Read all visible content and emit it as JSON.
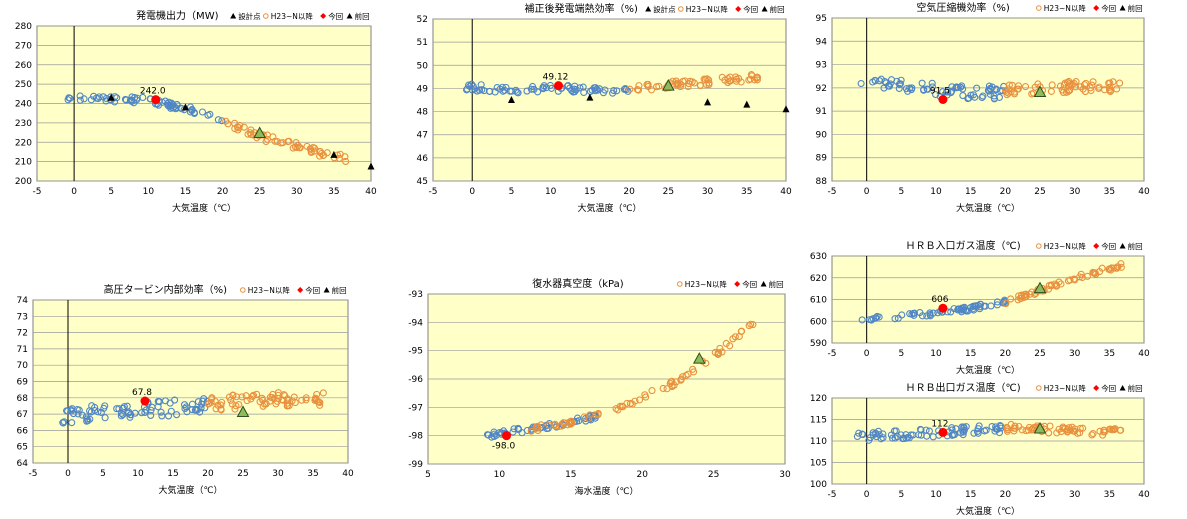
{
  "legend_labels": {
    "design": "設計点",
    "h23": "H23~N以降",
    "current": "今回",
    "previous": "前回"
  },
  "colors": {
    "plot_bg": "#ffffc8",
    "grid": "#9a9a9a",
    "blue": "#4f86c6",
    "orange": "#e8913e",
    "current": "#ff0000",
    "previous_fill": "#8fbc5a",
    "design": "#000000"
  },
  "chart_data": [
    {
      "id": "c1",
      "type": "scatter",
      "title": "発電機出力（MW)",
      "legend": [
        "design",
        "h23",
        "current",
        "previous"
      ],
      "xlabel": "大気温度（℃）",
      "ylabel": "",
      "xlim": [
        -5,
        40
      ],
      "ylim": [
        200,
        280
      ],
      "xticks": [
        -5,
        0,
        5,
        10,
        15,
        20,
        25,
        30,
        35,
        40
      ],
      "yticks": [
        200,
        210,
        220,
        230,
        240,
        250,
        260,
        270,
        280
      ],
      "vline_x": 0,
      "series": [
        {
          "color": "blue",
          "xrange": [
            -1,
            20
          ],
          "curve": [
            [
              -1,
              242.5
            ],
            [
              5,
              242.5
            ],
            [
              10,
              241.5
            ],
            [
              15,
              237.5
            ],
            [
              20,
              231
            ]
          ],
          "spread": 1.6,
          "n": 70
        },
        {
          "color": "orange",
          "xrange": [
            20,
            37
          ],
          "curve": [
            [
              20,
              231
            ],
            [
              25,
              223
            ],
            [
              30,
              218
            ],
            [
              34,
              213.5
            ],
            [
              37,
              211.5
            ]
          ],
          "spread": 1.8,
          "n": 60
        }
      ],
      "design_points": [
        [
          5,
          243
        ],
        [
          15,
          238
        ],
        [
          35,
          213.5
        ],
        [
          40,
          207.5
        ]
      ],
      "current": {
        "x": 11,
        "y": 242.0,
        "label": "242.0"
      },
      "previous": {
        "x": 25,
        "y": 224.5
      }
    },
    {
      "id": "c2",
      "type": "scatter",
      "title": "補正後発電端熱効率（%)",
      "legend": [
        "design",
        "h23",
        "current",
        "previous"
      ],
      "xlabel": "大気温度（℃）",
      "ylabel": "",
      "xlim": [
        -5,
        40
      ],
      "ylim": [
        45,
        52
      ],
      "xticks": [
        -5,
        0,
        5,
        10,
        15,
        20,
        25,
        30,
        35,
        40
      ],
      "yticks": [
        45,
        46,
        47,
        48,
        49,
        50,
        51,
        52
      ],
      "vline_x": 0,
      "series": [
        {
          "color": "blue",
          "xrange": [
            -1,
            20
          ],
          "curve": [
            [
              -1,
              49.05
            ],
            [
              5,
              48.95
            ],
            [
              10,
              49.0
            ],
            [
              15,
              48.95
            ],
            [
              20,
              48.9
            ]
          ],
          "spread": 0.15,
          "n": 70
        },
        {
          "color": "orange",
          "xrange": [
            20,
            37
          ],
          "curve": [
            [
              20,
              49.0
            ],
            [
              25,
              49.15
            ],
            [
              30,
              49.3
            ],
            [
              37,
              49.5
            ]
          ],
          "spread": 0.15,
          "n": 60
        }
      ],
      "design_points": [
        [
          5,
          48.5
        ],
        [
          15,
          48.6
        ],
        [
          30,
          48.4
        ],
        [
          35,
          48.3
        ],
        [
          40,
          48.1
        ]
      ],
      "current": {
        "x": 11,
        "y": 49.12,
        "label": "49.12"
      },
      "previous": {
        "x": 25,
        "y": 49.1
      }
    },
    {
      "id": "c3",
      "type": "scatter",
      "title": "空気圧縮機効率（%)",
      "legend": [
        "h23",
        "current",
        "previous"
      ],
      "xlabel": "大気温度（℃）",
      "ylabel": "",
      "xlim": [
        -5,
        40
      ],
      "ylim": [
        88,
        95
      ],
      "xticks": [
        -5,
        0,
        5,
        10,
        15,
        20,
        25,
        30,
        35,
        40
      ],
      "yticks": [
        88,
        89,
        90,
        91,
        92,
        93,
        94,
        95
      ],
      "vline_x": 0,
      "series": [
        {
          "color": "blue",
          "xrange": [
            -1,
            20
          ],
          "curve": [
            [
              -1,
              92.3
            ],
            [
              5,
              92.1
            ],
            [
              10,
              91.9
            ],
            [
              15,
              91.8
            ],
            [
              20,
              91.8
            ]
          ],
          "spread": 0.28,
          "n": 70
        },
        {
          "color": "orange",
          "xrange": [
            20,
            37
          ],
          "curve": [
            [
              20,
              91.9
            ],
            [
              25,
              92.0
            ],
            [
              30,
              92.05
            ],
            [
              37,
              92.1
            ]
          ],
          "spread": 0.25,
          "n": 60
        }
      ],
      "design_points": [],
      "current": {
        "x": 11,
        "y": 91.5,
        "label": "91.5"
      },
      "previous": {
        "x": 25,
        "y": 91.8
      }
    },
    {
      "id": "c4",
      "type": "scatter",
      "title": "高圧タービン内部効率（%)",
      "legend": [
        "h23",
        "current",
        "previous"
      ],
      "xlabel": "大気温度（℃）",
      "ylabel": "",
      "xlim": [
        -5,
        40
      ],
      "ylim": [
        64,
        74
      ],
      "xticks": [
        -5,
        0,
        5,
        10,
        15,
        20,
        25,
        30,
        35,
        40
      ],
      "yticks": [
        64,
        65,
        66,
        67,
        68,
        69,
        70,
        71,
        72,
        73,
        74
      ],
      "vline_x": 0,
      "series": [
        {
          "color": "blue",
          "xrange": [
            -1,
            20
          ],
          "curve": [
            [
              -1,
              66.9
            ],
            [
              5,
              67.1
            ],
            [
              10,
              67.3
            ],
            [
              15,
              67.4
            ],
            [
              20,
              67.5
            ]
          ],
          "spread": 0.5,
          "n": 80
        },
        {
          "color": "orange",
          "xrange": [
            20,
            37
          ],
          "curve": [
            [
              20,
              67.6
            ],
            [
              25,
              67.8
            ],
            [
              30,
              67.9
            ],
            [
              37,
              67.9
            ]
          ],
          "spread": 0.45,
          "n": 70
        }
      ],
      "design_points": [],
      "current": {
        "x": 11,
        "y": 67.8,
        "label": "67.8"
      },
      "previous": {
        "x": 25,
        "y": 67.1
      }
    },
    {
      "id": "c5",
      "type": "scatter",
      "title": "復水器真空度（kPa)",
      "legend": [
        "h23",
        "current",
        "previous"
      ],
      "xlabel": "海水温度（℃）",
      "ylabel": "",
      "xlim": [
        5,
        30
      ],
      "ylim": [
        -99,
        -93
      ],
      "xticks": [
        5,
        10,
        15,
        20,
        25,
        30
      ],
      "yticks": [
        -99,
        -98,
        -97,
        -96,
        -95,
        -94,
        -93
      ],
      "vline_x": null,
      "series": [
        {
          "color": "blue",
          "xrange": [
            9,
            17
          ],
          "curve": [
            [
              9,
              -98.0
            ],
            [
              13,
              -97.7
            ],
            [
              17,
              -97.3
            ]
          ],
          "spread": 0.1,
          "n": 55
        },
        {
          "color": "orange",
          "xrange": [
            12,
            28
          ],
          "curve": [
            [
              12,
              -97.8
            ],
            [
              17,
              -97.3
            ],
            [
              22,
              -96.2
            ],
            [
              25,
              -95.2
            ],
            [
              28,
              -93.95
            ]
          ],
          "spread": 0.1,
          "n": 75
        }
      ],
      "design_points": [],
      "current": {
        "x": 10.5,
        "y": -98.0,
        "label": "-98.0"
      },
      "previous": {
        "x": 24,
        "y": -95.3
      }
    },
    {
      "id": "c6",
      "type": "scatter",
      "title": "ＨＲＢ入口ガス温度（℃)",
      "legend": [
        "h23",
        "current",
        "previous"
      ],
      "xlabel": "大気温度（℃）",
      "ylabel": "",
      "xlim": [
        -5,
        40
      ],
      "ylim": [
        590,
        630
      ],
      "xticks": [
        -5,
        0,
        5,
        10,
        15,
        20,
        25,
        30,
        35,
        40
      ],
      "yticks": [
        590,
        600,
        610,
        620,
        630
      ],
      "vline_x": 0,
      "series": [
        {
          "color": "blue",
          "xrange": [
            -1,
            20
          ],
          "curve": [
            [
              -1,
              601
            ],
            [
              5,
              602
            ],
            [
              10,
              604
            ],
            [
              15,
              606
            ],
            [
              20,
              609
            ]
          ],
          "spread": 1.2,
          "n": 65
        },
        {
          "color": "orange",
          "xrange": [
            20,
            37
          ],
          "curve": [
            [
              20,
              609
            ],
            [
              25,
              614
            ],
            [
              30,
              620
            ],
            [
              37,
              626
            ]
          ],
          "spread": 1.0,
          "n": 60
        }
      ],
      "design_points": [],
      "current": {
        "x": 11,
        "y": 606,
        "label": "606"
      },
      "previous": {
        "x": 25,
        "y": 615
      }
    },
    {
      "id": "c7",
      "type": "scatter",
      "title": "ＨＲＢ出口ガス温度（℃)",
      "legend": [
        "h23",
        "current",
        "previous"
      ],
      "xlabel": "大気温度（℃）",
      "ylabel": "",
      "xlim": [
        -5,
        40
      ],
      "ylim": [
        100,
        120
      ],
      "xticks": [
        -5,
        0,
        5,
        10,
        15,
        20,
        25,
        30,
        35,
        40
      ],
      "yticks": [
        100,
        105,
        110,
        115,
        120
      ],
      "vline_x": 0,
      "series": [
        {
          "color": "blue",
          "xrange": [
            -2,
            20
          ],
          "curve": [
            [
              -2,
              111
            ],
            [
              5,
              111.5
            ],
            [
              10,
              112
            ],
            [
              15,
              112.5
            ],
            [
              20,
              112.8
            ]
          ],
          "spread": 1.0,
          "n": 75
        },
        {
          "color": "orange",
          "xrange": [
            20,
            37
          ],
          "curve": [
            [
              20,
              113
            ],
            [
              25,
              112.8
            ],
            [
              30,
              112.4
            ],
            [
              37,
              112
            ]
          ],
          "spread": 0.9,
          "n": 65
        }
      ],
      "design_points": [],
      "current": {
        "x": 11,
        "y": 112,
        "label": "112"
      },
      "previous": {
        "x": 25,
        "y": 112.8
      }
    }
  ]
}
